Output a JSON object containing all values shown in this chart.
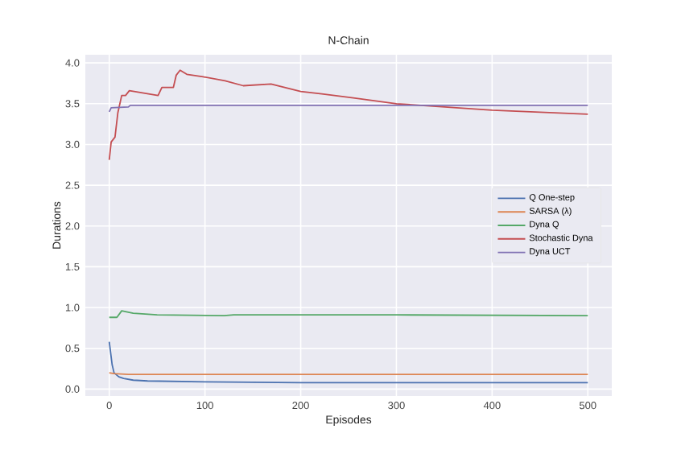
{
  "chart_data": {
    "type": "line",
    "title": "N-Chain",
    "xlabel": "Episodes",
    "ylabel": "Durations",
    "xlim": [
      -25,
      525
    ],
    "xticks": [
      0,
      100,
      200,
      300,
      400,
      500
    ],
    "ylim": [
      -0.085,
      4.1
    ],
    "yticks": [
      {
        "value": 0,
        "label": "0.0"
      },
      {
        "value": 0.5,
        "label": "0.5"
      },
      {
        "value": 1,
        "label": "1.0"
      },
      {
        "value": 1.5,
        "label": "1.5"
      },
      {
        "value": 2,
        "label": "2.0"
      },
      {
        "value": 2.5,
        "label": "2.5"
      },
      {
        "value": 3,
        "label": "3.0"
      },
      {
        "value": 3.5,
        "label": "3.5"
      },
      {
        "value": 4,
        "label": "4.0"
      }
    ],
    "grid": true,
    "legend": "right",
    "marker": "none",
    "line_style": "solid",
    "series": [
      {
        "name": "Q One-step",
        "color": "#4c72b0",
        "x": [
          0,
          3,
          5,
          10,
          15,
          25,
          40,
          100,
          200,
          300,
          400,
          500
        ],
        "values": [
          0.58,
          0.3,
          0.2,
          0.15,
          0.13,
          0.11,
          0.1,
          0.09,
          0.08,
          0.08,
          0.08,
          0.08
        ]
      },
      {
        "name": "SARSA (λ)",
        "color": "#dd8452",
        "x": [
          0,
          5,
          20,
          100,
          300,
          500
        ],
        "values": [
          0.2,
          0.19,
          0.18,
          0.18,
          0.18,
          0.18
        ]
      },
      {
        "name": "Dyna Q",
        "color": "#55a868",
        "x": [
          0,
          8,
          13,
          25,
          50,
          120,
          130,
          300,
          500
        ],
        "values": [
          0.88,
          0.88,
          0.96,
          0.93,
          0.91,
          0.9,
          0.91,
          0.91,
          0.9
        ]
      },
      {
        "name": "Stochastic Dyna",
        "color": "#c44e52",
        "x": [
          0,
          2,
          6,
          9,
          13,
          17,
          21,
          31,
          51,
          55,
          67,
          70,
          74,
          81,
          98,
          121,
          140,
          169,
          200,
          222,
          255,
          300,
          400,
          500
        ],
        "values": [
          2.81,
          3.03,
          3.09,
          3.39,
          3.6,
          3.6,
          3.66,
          3.64,
          3.6,
          3.7,
          3.7,
          3.85,
          3.91,
          3.86,
          3.83,
          3.78,
          3.72,
          3.74,
          3.65,
          3.62,
          3.57,
          3.5,
          3.42,
          3.37
        ]
      },
      {
        "name": "Dyna UCT",
        "color": "#8172b3",
        "x": [
          0,
          2,
          20,
          22,
          100,
          300,
          500
        ],
        "values": [
          3.4,
          3.45,
          3.46,
          3.48,
          3.48,
          3.48,
          3.48
        ]
      }
    ]
  }
}
